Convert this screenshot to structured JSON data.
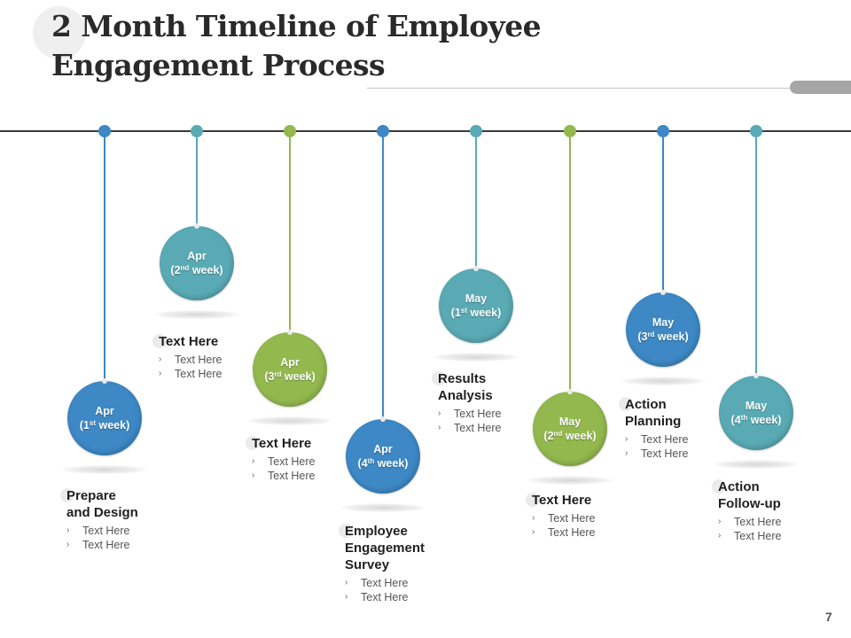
{
  "title": {
    "line1": "2 Month Timeline of Employee",
    "line2": "Engagement Process"
  },
  "colors": {
    "blue": "#3d88c5",
    "teal": "#5aaab5",
    "green": "#93b94e",
    "axis": "#3b3b3b",
    "title_text": "#2a2a2a",
    "accent_pill": "#a6a6a6"
  },
  "timeline": [
    {
      "month": "Apr",
      "ordinal": "1",
      "suffix": "st",
      "week": "week)",
      "color": "blue",
      "heading": "Prepare and Design",
      "heading_lines": [
        "Prepare",
        "and Design"
      ],
      "bullets": [
        "Text Here",
        "Text Here"
      ]
    },
    {
      "month": "Apr",
      "ordinal": "2",
      "suffix": "nd",
      "week": "week)",
      "color": "teal",
      "heading": "Text Here",
      "heading_lines": [
        "Text Here"
      ],
      "bullets": [
        "Text Here",
        "Text Here"
      ]
    },
    {
      "month": "Apr",
      "ordinal": "3",
      "suffix": "rd",
      "week": " week)",
      "color": "green",
      "heading": "Text Here",
      "heading_lines": [
        "Text Here"
      ],
      "bullets": [
        "Text Here",
        "Text Here"
      ]
    },
    {
      "month": "Apr",
      "ordinal": "4",
      "suffix": "th",
      "week": " week)",
      "color": "blue",
      "heading": "Employee Engagement Survey",
      "heading_lines": [
        "Employee",
        "Engagement",
        "Survey"
      ],
      "bullets": [
        "Text Here",
        "Text Here"
      ]
    },
    {
      "month": "May",
      "ordinal": "1",
      "suffix": "st",
      "week": "week)",
      "color": "teal",
      "heading": "Results Analysis",
      "heading_lines": [
        "Results",
        "Analysis"
      ],
      "bullets": [
        "Text Here",
        "Text Here"
      ]
    },
    {
      "month": "May",
      "ordinal": "2",
      "suffix": "nd",
      "week": "week)",
      "color": "green",
      "heading": "Text Here",
      "heading_lines": [
        "Text Here"
      ],
      "bullets": [
        "Text Here",
        "Text Here"
      ]
    },
    {
      "month": "May",
      "ordinal": "3",
      "suffix": "rd",
      "week": "week)",
      "color": "blue",
      "heading": "Action Planning",
      "heading_lines": [
        "Action",
        "Planning"
      ],
      "bullets": [
        "Text Here",
        "Text Here"
      ]
    },
    {
      "month": "May",
      "ordinal": "4",
      "suffix": "th",
      "week": "week)",
      "color": "teal",
      "heading": "Action Follow-up",
      "heading_lines": [
        "Action",
        "Follow-up"
      ],
      "bullets": [
        "Text Here",
        "Text Here"
      ]
    }
  ],
  "bullet_glyph": "›",
  "page_number": "7"
}
